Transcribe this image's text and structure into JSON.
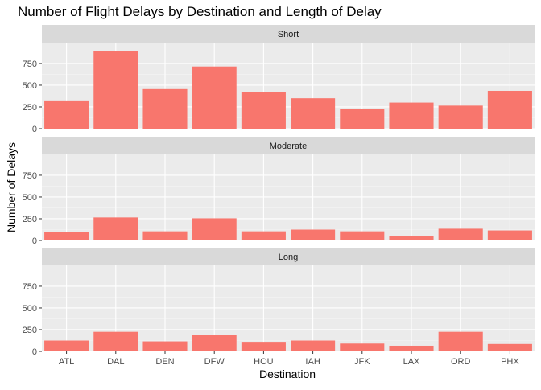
{
  "chart_data": {
    "type": "bar",
    "title": "Number of Flight Delays by Destination and Length of Delay",
    "xlabel": "Destination",
    "ylabel": "Number of Delays",
    "categories": [
      "ATL",
      "DAL",
      "DEN",
      "DFW",
      "HOU",
      "IAH",
      "JFK",
      "LAX",
      "ORD",
      "PHX"
    ],
    "ylim": [
      0,
      990
    ],
    "yticks": [
      0,
      250,
      500,
      750
    ],
    "ytick_labels": [
      "0",
      "250",
      "500",
      "750"
    ],
    "grid": true,
    "legend": "none",
    "bar_color": "#F8766D",
    "panel_background": "#EBEBEB",
    "strip_background": "#D9D9D9",
    "facets": [
      {
        "name": "Short",
        "values": [
          325,
          895,
          455,
          715,
          425,
          350,
          225,
          300,
          265,
          435
        ]
      },
      {
        "name": "Moderate",
        "values": [
          95,
          265,
          105,
          255,
          105,
          125,
          105,
          55,
          135,
          115
        ]
      },
      {
        "name": "Long",
        "values": [
          125,
          225,
          115,
          190,
          110,
          125,
          90,
          65,
          225,
          85
        ]
      }
    ]
  }
}
